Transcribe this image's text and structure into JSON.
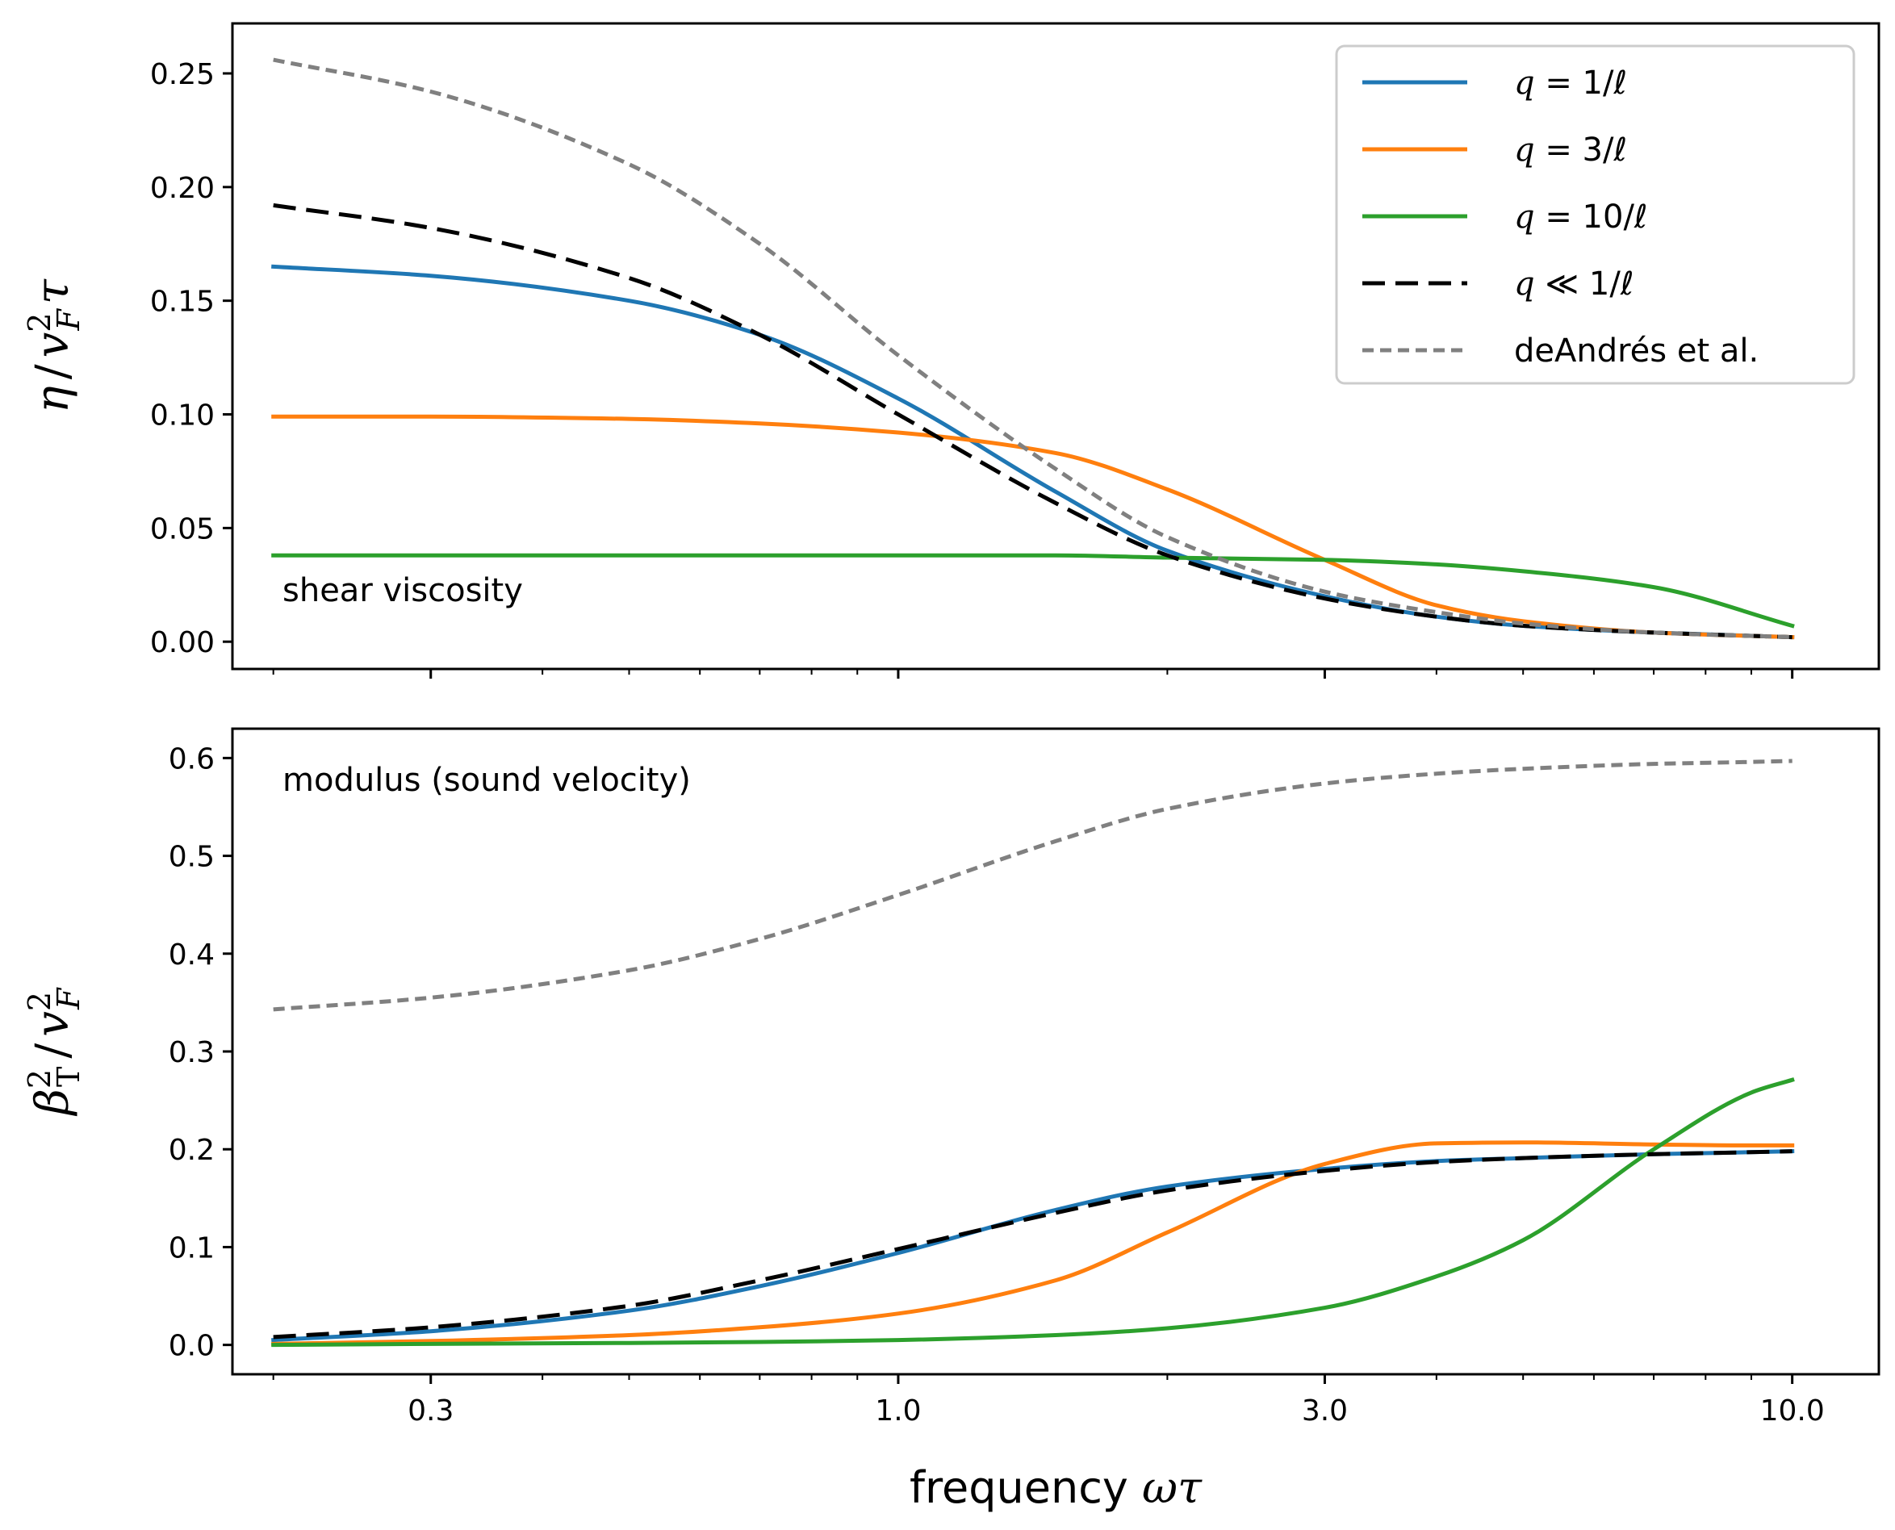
{
  "chart_data": [
    {
      "type": "line",
      "panel": "top",
      "annotation": "shear viscosity",
      "ylabel": "η / v_F² τ",
      "xscale": "log",
      "xlim": [
        0.18,
        12.5
      ],
      "ylim": [
        -0.012,
        0.272
      ],
      "yticks": [
        0.0,
        0.05,
        0.1,
        0.15,
        0.2,
        0.25
      ],
      "ytick_labels": [
        "0.00",
        "0.05",
        "0.10",
        "0.15",
        "0.20",
        "0.25"
      ],
      "legend": {
        "placement": "top-right",
        "entries": [
          "q = 1/ℓ",
          "q = 3/ℓ",
          "q = 10/ℓ",
          "q ≪ 1/ℓ",
          "deAndrés et al."
        ]
      },
      "x": [
        0.2,
        0.3,
        0.5,
        0.7,
        1.0,
        1.5,
        2.0,
        3.0,
        4.0,
        5.0,
        7.0,
        10.0
      ],
      "series": [
        {
          "name": "q = 1/ℓ",
          "color": "#1f77b4",
          "style": "solid",
          "values": [
            0.165,
            0.161,
            0.15,
            0.135,
            0.107,
            0.066,
            0.04,
            0.02,
            0.011,
            0.007,
            0.004,
            0.002
          ]
        },
        {
          "name": "q = 3/ℓ",
          "color": "#ff7f0e",
          "style": "solid",
          "values": [
            0.099,
            0.099,
            0.098,
            0.096,
            0.092,
            0.083,
            0.067,
            0.036,
            0.016,
            0.009,
            0.004,
            0.002
          ]
        },
        {
          "name": "q = 10/ℓ",
          "color": "#2ca02c",
          "style": "solid",
          "values": [
            0.038,
            0.038,
            0.038,
            0.038,
            0.038,
            0.038,
            0.037,
            0.036,
            0.034,
            0.031,
            0.024,
            0.007
          ]
        },
        {
          "name": "q ≪ 1/ℓ",
          "color": "#000000",
          "style": "dashed",
          "values": [
            0.192,
            0.182,
            0.16,
            0.135,
            0.1,
            0.061,
            0.038,
            0.019,
            0.011,
            0.007,
            0.004,
            0.002
          ]
        },
        {
          "name": "deAndrés et al.",
          "color": "#808080",
          "style": "dotted",
          "values": [
            0.256,
            0.242,
            0.21,
            0.175,
            0.126,
            0.076,
            0.046,
            0.022,
            0.013,
            0.008,
            0.004,
            0.002
          ]
        }
      ]
    },
    {
      "type": "line",
      "panel": "bottom",
      "annotation": "modulus (sound velocity)",
      "ylabel": "β_T² / v_F²",
      "xlabel": "frequency ωτ",
      "xscale": "log",
      "xlim": [
        0.18,
        12.5
      ],
      "ylim": [
        -0.03,
        0.63
      ],
      "xticks": [
        0.3,
        1.0,
        3.0,
        10.0
      ],
      "xtick_labels": [
        "0.3",
        "1.0",
        "3.0",
        "10.0"
      ],
      "yticks": [
        0.0,
        0.1,
        0.2,
        0.3,
        0.4,
        0.5,
        0.6
      ],
      "ytick_labels": [
        "0.0",
        "0.1",
        "0.2",
        "0.3",
        "0.4",
        "0.5",
        "0.6"
      ],
      "x": [
        0.2,
        0.3,
        0.5,
        0.7,
        1.0,
        1.5,
        2.0,
        3.0,
        4.0,
        5.0,
        7.0,
        9.0,
        10.0
      ],
      "series": [
        {
          "name": "q = 1/ℓ",
          "color": "#1f77b4",
          "style": "solid",
          "values": [
            0.005,
            0.014,
            0.035,
            0.06,
            0.094,
            0.138,
            0.162,
            0.18,
            0.188,
            0.191,
            0.195,
            0.197,
            0.198
          ]
        },
        {
          "name": "q = 3/ℓ",
          "color": "#ff7f0e",
          "style": "solid",
          "values": [
            0.001,
            0.004,
            0.01,
            0.018,
            0.032,
            0.066,
            0.115,
            0.185,
            0.206,
            0.207,
            0.205,
            0.204,
            0.204
          ]
        },
        {
          "name": "q = 10/ℓ",
          "color": "#2ca02c",
          "style": "solid",
          "values": [
            0.0,
            0.001,
            0.002,
            0.003,
            0.005,
            0.01,
            0.017,
            0.038,
            0.07,
            0.107,
            0.2,
            0.258,
            0.271
          ]
        },
        {
          "name": "q ≪ 1/ℓ",
          "color": "#000000",
          "style": "dashed",
          "values": [
            0.008,
            0.018,
            0.04,
            0.066,
            0.098,
            0.135,
            0.158,
            0.178,
            0.187,
            0.191,
            0.195,
            0.197,
            0.198
          ]
        },
        {
          "name": "deAndrés et al.",
          "color": "#808080",
          "style": "dotted",
          "values": [
            0.343,
            0.355,
            0.383,
            0.415,
            0.46,
            0.515,
            0.548,
            0.574,
            0.584,
            0.589,
            0.594,
            0.596,
            0.597
          ]
        }
      ]
    }
  ]
}
